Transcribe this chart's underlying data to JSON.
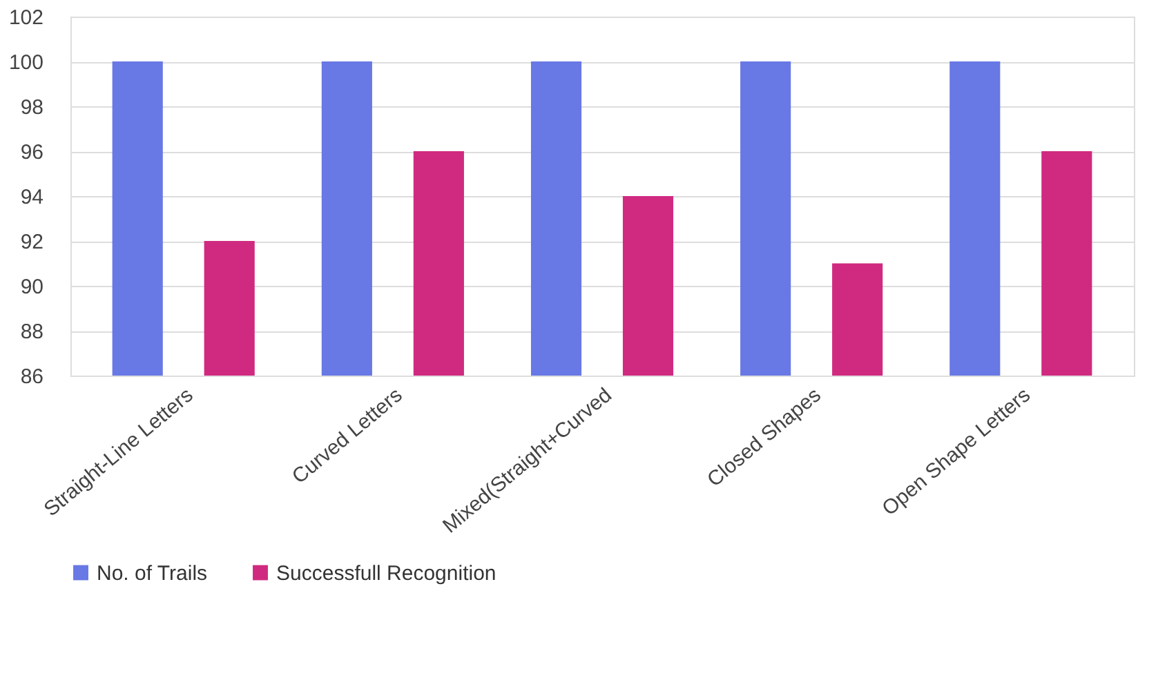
{
  "chart_data": {
    "type": "bar",
    "categories": [
      "Straight-Line Letters",
      "Curved Letters",
      "Mixed(Straight+Curved",
      "Closed Shapes",
      "Open Shape Letters"
    ],
    "series": [
      {
        "name": "No. of Trails",
        "color": "#6878e4",
        "values": [
          100,
          100,
          100,
          100,
          100
        ]
      },
      {
        "name": "Successfull Recognition",
        "color": "#d02a80",
        "values": [
          92,
          96,
          94,
          91,
          96
        ]
      }
    ],
    "ylim": [
      86,
      102
    ],
    "yticks": [
      86,
      88,
      90,
      92,
      94,
      96,
      98,
      100,
      102
    ],
    "grid": "y",
    "legend": "bottom"
  }
}
